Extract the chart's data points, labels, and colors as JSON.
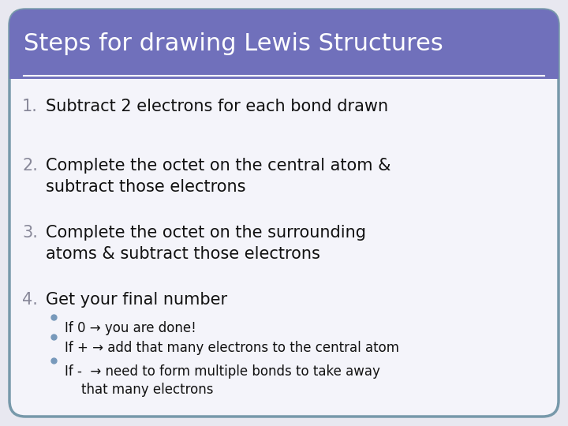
{
  "title": "Steps for drawing Lewis Structures",
  "title_bg_color": "#7070BB",
  "title_text_color": "#FFFFFF",
  "bg_color": "#E8E8F0",
  "body_bg_color": "#F4F4FA",
  "border_color": "#7799AA",
  "numbered_items": [
    "Subtract 2 electrons for each bond drawn",
    "Complete the octet on the central atom &\nsubtract those electrons",
    "Complete the octet on the surrounding\natoms & subtract those electrons",
    "Get your final number"
  ],
  "numbered_color": "#888899",
  "body_text_color": "#111111",
  "bullet_color": "#7799BB",
  "bullet_items": [
    "If 0 → you are done!",
    "If + → add that many electrons to the central atom",
    "If -  → need to form multiple bonds to take away\n    that many electrons"
  ],
  "bullet_text_color": "#111111",
  "separator_color": "#FFFFFF",
  "title_fontsize": 22,
  "body_fontsize": 15,
  "bullet_fontsize": 12
}
